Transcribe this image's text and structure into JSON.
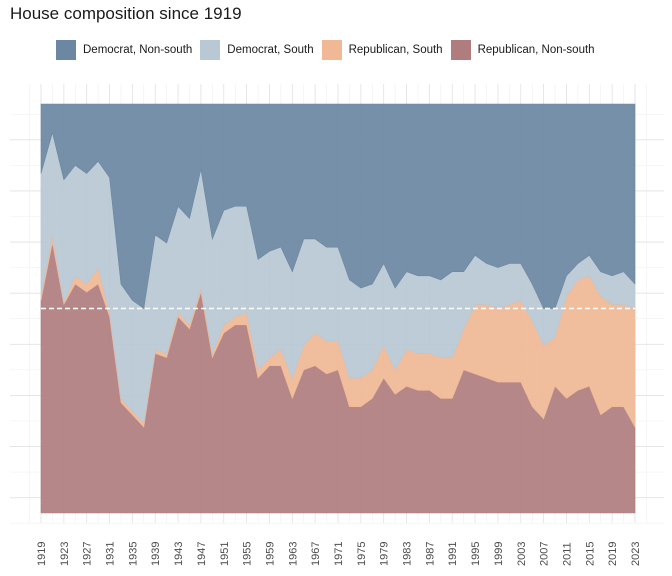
{
  "chart_data": {
    "type": "area",
    "stacked": true,
    "normalized": true,
    "title": "House composition since 1919",
    "xlabel": "",
    "ylabel": "",
    "ylim": [
      0,
      1
    ],
    "grid": true,
    "legend_position": "top",
    "reference_line": {
      "y": 0.5,
      "style": "dashed",
      "color": "#ffffff"
    },
    "x": [
      1919,
      1921,
      1923,
      1925,
      1927,
      1929,
      1931,
      1933,
      1935,
      1937,
      1939,
      1941,
      1943,
      1945,
      1947,
      1949,
      1951,
      1953,
      1955,
      1957,
      1959,
      1961,
      1963,
      1965,
      1967,
      1969,
      1971,
      1973,
      1975,
      1977,
      1979,
      1981,
      1983,
      1985,
      1987,
      1989,
      1991,
      1993,
      1995,
      1997,
      1999,
      2001,
      2003,
      2005,
      2007,
      2009,
      2011,
      2013,
      2015,
      2017,
      2019,
      2021,
      2023
    ],
    "x_ticks": [
      "1919",
      "1923",
      "1927",
      "1931",
      "1935",
      "1939",
      "1943",
      "1947",
      "1951",
      "1955",
      "1959",
      "1963",
      "1967",
      "1971",
      "1975",
      "1979",
      "1983",
      "1987",
      "1991",
      "1995",
      "1999",
      "2003",
      "2007",
      "2011",
      "2015",
      "2019",
      "2023"
    ],
    "series": [
      {
        "name": "Republican, Non-south",
        "color": "#b07d7e",
        "values": [
          0.52,
          0.66,
          0.51,
          0.56,
          0.54,
          0.56,
          0.48,
          0.27,
          0.24,
          0.21,
          0.39,
          0.38,
          0.48,
          0.45,
          0.54,
          0.38,
          0.44,
          0.46,
          0.46,
          0.33,
          0.36,
          0.36,
          0.28,
          0.35,
          0.36,
          0.34,
          0.35,
          0.26,
          0.26,
          0.28,
          0.33,
          0.29,
          0.31,
          0.3,
          0.3,
          0.28,
          0.28,
          0.35,
          0.34,
          0.33,
          0.32,
          0.32,
          0.32,
          0.26,
          0.23,
          0.31,
          0.28,
          0.3,
          0.31,
          0.24,
          0.26,
          0.26,
          0.21
        ]
      },
      {
        "name": "Republican, South",
        "color": "#f0b895",
        "values": [
          0.01,
          0.02,
          0.005,
          0.02,
          0.02,
          0.04,
          0.01,
          0.01,
          0.01,
          0.01,
          0.01,
          0.01,
          0.01,
          0.01,
          0.01,
          0.01,
          0.02,
          0.02,
          0.03,
          0.02,
          0.02,
          0.04,
          0.05,
          0.06,
          0.08,
          0.08,
          0.07,
          0.07,
          0.07,
          0.07,
          0.08,
          0.06,
          0.09,
          0.09,
          0.09,
          0.1,
          0.1,
          0.1,
          0.17,
          0.18,
          0.18,
          0.19,
          0.2,
          0.21,
          0.18,
          0.12,
          0.25,
          0.27,
          0.27,
          0.29,
          0.25,
          0.25,
          0.29
        ]
      },
      {
        "name": "Democrat, South",
        "color": "#b8c8d4",
        "values": [
          0.3,
          0.25,
          0.3,
          0.27,
          0.27,
          0.26,
          0.33,
          0.28,
          0.27,
          0.28,
          0.28,
          0.27,
          0.26,
          0.26,
          0.29,
          0.28,
          0.28,
          0.27,
          0.26,
          0.27,
          0.26,
          0.25,
          0.26,
          0.26,
          0.23,
          0.23,
          0.23,
          0.24,
          0.22,
          0.21,
          0.2,
          0.2,
          0.19,
          0.19,
          0.19,
          0.19,
          0.21,
          0.14,
          0.12,
          0.1,
          0.1,
          0.1,
          0.09,
          0.09,
          0.09,
          0.07,
          0.05,
          0.04,
          0.05,
          0.06,
          0.07,
          0.08,
          0.06
        ]
      },
      {
        "name": "Democrat, Non-south",
        "color": "#6b87a2",
        "values": [
          0.17,
          0.07,
          0.185,
          0.15,
          0.17,
          0.14,
          0.18,
          0.44,
          0.48,
          0.5,
          0.32,
          0.34,
          0.25,
          0.28,
          0.16,
          0.33,
          0.26,
          0.25,
          0.25,
          0.38,
          0.36,
          0.35,
          0.41,
          0.33,
          0.33,
          0.35,
          0.35,
          0.43,
          0.45,
          0.44,
          0.39,
          0.45,
          0.41,
          0.42,
          0.42,
          0.43,
          0.41,
          0.41,
          0.37,
          0.39,
          0.4,
          0.39,
          0.39,
          0.44,
          0.5,
          0.5,
          0.42,
          0.39,
          0.37,
          0.41,
          0.42,
          0.41,
          0.44
        ]
      }
    ]
  }
}
